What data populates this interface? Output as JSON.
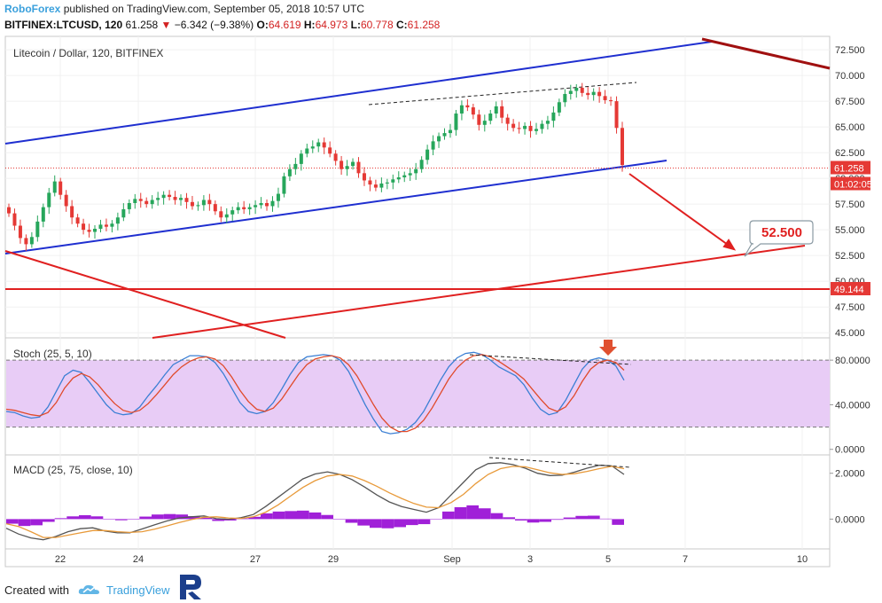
{
  "header": {
    "brand": "RoboForex",
    "published": "published on TradingView.com, September 05, 2018 10:57 UTC",
    "symbol": "BITFINEX:LTCUSD, 120",
    "last": "61.258",
    "change": "−6.342 (−9.38%)",
    "o_label": "O:",
    "o": "64.619",
    "h_label": "H:",
    "h": "64.973",
    "l_label": "L:",
    "l": "60.778",
    "c_label": "C:",
    "c": "61.258"
  },
  "footer": {
    "created_with": "Created with",
    "tradingview": "TradingView"
  },
  "colors": {
    "up": "#26a65b",
    "down": "#e53935",
    "channel": "#1f2fd0",
    "resistance": "#a01010",
    "support": "#e02020",
    "stoch_fill": "#e8ccf6",
    "macd_hist": "#a020d8"
  },
  "chart_data": [
    {
      "type": "candlestick",
      "title": "Litecoin / Dollar, 120, BITFINEX",
      "x_ticks": [
        "22",
        "24",
        "27",
        "29",
        "Sep",
        "3",
        "5",
        "7",
        "10"
      ],
      "y_ticks": [
        "72.500",
        "70.000",
        "67.500",
        "65.000",
        "62.500",
        "60.000",
        "57.500",
        "55.000",
        "52.500",
        "50.000",
        "47.500",
        "45.000"
      ],
      "ylim": [
        44.5,
        73.8
      ],
      "price_labels": {
        "last": "61.258",
        "countdown": "01:02:05",
        "support_level": "49.144"
      },
      "target": "52.500",
      "series": [
        {
          "name": "LTCUSD",
          "closes": [
            56.6,
            55.4,
            54.2,
            53.6,
            54.3,
            55.8,
            57.2,
            58.6,
            59.7,
            58.4,
            57.3,
            56.2,
            55.6,
            55.0,
            54.8,
            55.1,
            55.5,
            55.3,
            55.6,
            56.2,
            57.0,
            57.6,
            58.0,
            57.8,
            57.5,
            57.9,
            58.1,
            58.4,
            58.2,
            57.9,
            58.1,
            57.7,
            57.3,
            57.4,
            57.9,
            57.5,
            56.8,
            56.2,
            56.5,
            56.9,
            57.2,
            57.0,
            57.2,
            57.4,
            57.6,
            57.3,
            57.8,
            58.5,
            60.2,
            60.9,
            61.4,
            62.4,
            62.9,
            63.1,
            63.5,
            63.0,
            62.4,
            61.7,
            60.9,
            61.2,
            61.6,
            60.5,
            59.8,
            59.4,
            59.1,
            59.5,
            59.6,
            59.9,
            60.1,
            60.3,
            60.5,
            60.9,
            61.8,
            62.8,
            63.6,
            64.1,
            64.4,
            64.7,
            66.3,
            67.1,
            66.9,
            66.2,
            65.2,
            65.6,
            66.3,
            67.0,
            65.9,
            65.3,
            64.9,
            64.8,
            65.1,
            64.6,
            64.8,
            65.3,
            65.6,
            66.4,
            67.4,
            68.2,
            68.5,
            68.8,
            68.3,
            68.1,
            68.4,
            68.0,
            67.6,
            67.5,
            64.9,
            61.3
          ]
        }
      ]
    },
    {
      "type": "line",
      "title": "Stoch (25, 5, 10)",
      "y_ticks": [
        "80.0000",
        "40.0000",
        "0.0000"
      ],
      "ylim": [
        -5,
        100
      ],
      "levels": [
        80,
        20
      ],
      "series": [
        {
          "values": [
            34,
            33,
            30,
            28,
            29,
            38,
            52,
            66,
            71,
            69,
            60,
            50,
            40,
            33,
            31,
            32,
            38,
            48,
            57,
            67,
            76,
            80,
            84,
            84,
            83,
            78,
            68,
            55,
            42,
            34,
            32,
            34,
            42,
            54,
            67,
            78,
            83,
            84,
            85,
            84,
            80,
            70,
            55,
            40,
            27,
            16,
            14,
            15,
            18,
            24,
            34,
            48,
            62,
            74,
            82,
            86,
            87,
            85,
            80,
            74,
            70,
            66,
            58,
            46,
            36,
            31,
            33,
            44,
            58,
            72,
            80,
            82,
            80,
            75,
            62
          ]
        },
        {
          "values": [
            36,
            35,
            33,
            31,
            30,
            33,
            42,
            55,
            64,
            68,
            65,
            58,
            49,
            41,
            35,
            33,
            35,
            41,
            49,
            58,
            67,
            74,
            79,
            82,
            83,
            81,
            75,
            65,
            53,
            43,
            36,
            34,
            37,
            45,
            56,
            67,
            76,
            81,
            83,
            84,
            82,
            76,
            66,
            53,
            40,
            28,
            20,
            16,
            16,
            19,
            26,
            37,
            50,
            63,
            73,
            80,
            84,
            85,
            83,
            79,
            74,
            69,
            63,
            54,
            45,
            37,
            34,
            38,
            48,
            61,
            72,
            78,
            80,
            78,
            71
          ]
        }
      ]
    },
    {
      "type": "line",
      "title": "MACD (25, 75, close, 10)",
      "y_ticks": [
        "2.0000",
        "0.0000"
      ],
      "ylim": [
        -1.3,
        2.8
      ],
      "series": [
        {
          "values": [
            -0.4,
            -0.65,
            -0.82,
            -0.9,
            -0.76,
            -0.55,
            -0.42,
            -0.38,
            -0.52,
            -0.6,
            -0.6,
            -0.43,
            -0.25,
            -0.08,
            0.05,
            0.1,
            0.14,
            0.02,
            -0.01,
            0.06,
            0.2,
            0.55,
            0.95,
            1.35,
            1.75,
            1.97,
            2.06,
            1.95,
            1.72,
            1.4,
            1.05,
            0.75,
            0.55,
            0.42,
            0.3,
            0.5,
            1.05,
            1.6,
            2.15,
            2.42,
            2.46,
            2.38,
            2.22,
            2.0,
            1.9,
            1.92,
            2.05,
            2.22,
            2.35,
            2.32,
            1.95
          ]
        },
        {
          "values": [
            -0.2,
            -0.32,
            -0.55,
            -0.8,
            -0.8,
            -0.7,
            -0.6,
            -0.5,
            -0.5,
            -0.55,
            -0.58,
            -0.55,
            -0.44,
            -0.3,
            -0.15,
            -0.02,
            0.08,
            0.1,
            0.05,
            0.03,
            0.1,
            0.3,
            0.62,
            1.0,
            1.38,
            1.68,
            1.88,
            1.95,
            1.88,
            1.68,
            1.43,
            1.15,
            0.9,
            0.68,
            0.52,
            0.5,
            0.72,
            1.08,
            1.55,
            1.95,
            2.2,
            2.3,
            2.28,
            2.15,
            2.02,
            1.95,
            1.98,
            2.08,
            2.2,
            2.3,
            2.2
          ]
        },
        {
          "name": "histogram",
          "values": [
            -0.2,
            -0.3,
            -0.27,
            -0.12,
            0.04,
            0.12,
            0.17,
            0.12,
            -0.02,
            -0.05,
            -0.02,
            0.11,
            0.2,
            0.22,
            0.2,
            0.13,
            0.06,
            -0.08,
            -0.06,
            0.03,
            0.1,
            0.25,
            0.33,
            0.35,
            0.37,
            0.29,
            0.18,
            0.0,
            -0.16,
            -0.28,
            -0.38,
            -0.4,
            -0.35,
            -0.26,
            -0.22,
            0.0,
            0.33,
            0.52,
            0.6,
            0.47,
            0.26,
            0.08,
            -0.06,
            -0.15,
            -0.12,
            -0.03,
            0.07,
            0.14,
            0.15,
            0.02,
            -0.25
          ]
        }
      ]
    }
  ]
}
